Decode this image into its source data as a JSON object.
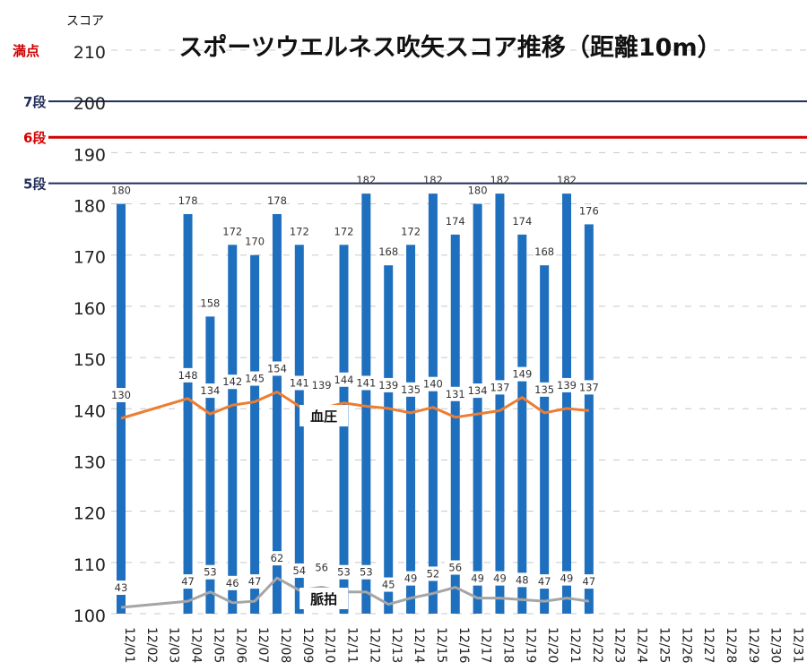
{
  "chart_data": {
    "type": "bar",
    "title": "スポーツウエルネス吹矢スコア推移（距離10m）",
    "ylabel": "スコア",
    "ylim": [
      100,
      210
    ],
    "yticks": [
      100,
      110,
      120,
      130,
      140,
      150,
      160,
      170,
      180,
      190,
      200,
      210
    ],
    "categories": [
      "12/01",
      "12/02",
      "12/03",
      "12/04",
      "12/05",
      "12/06",
      "12/07",
      "12/08",
      "12/09",
      "12/10",
      "12/11",
      "12/12",
      "12/13",
      "12/14",
      "12/15",
      "12/16",
      "12/17",
      "12/18",
      "12/19",
      "12/20",
      "12/21",
      "12/22",
      "12/23",
      "12/24",
      "12/25",
      "12/26",
      "12/27",
      "12/28",
      "12/29",
      "12/30",
      "12/31"
    ],
    "values": [
      180,
      null,
      null,
      178,
      158,
      172,
      170,
      178,
      172,
      null,
      172,
      182,
      168,
      172,
      182,
      174,
      180,
      182,
      174,
      168,
      182,
      176,
      null,
      null,
      null,
      null,
      null,
      null,
      null,
      null,
      null
    ],
    "lines": [
      {
        "name": "血圧",
        "color": "#ed7d31",
        "values": [
          130,
          null,
          null,
          148,
          134,
          142,
          145,
          154,
          141,
          139,
          144,
          141,
          139,
          135,
          140,
          131,
          134,
          137,
          149,
          135,
          139,
          137,
          null,
          null,
          null,
          null,
          null,
          null,
          null,
          null,
          null
        ]
      },
      {
        "name": "脈拍",
        "color": "#a5a5a5",
        "values": [
          43,
          null,
          null,
          47,
          53,
          46,
          47,
          62,
          54,
          56,
          53,
          53,
          45,
          49,
          52,
          56,
          49,
          49,
          48,
          47,
          49,
          47,
          null,
          null,
          null,
          null,
          null,
          null,
          null,
          null,
          null
        ]
      }
    ],
    "reference_lines": [
      {
        "label": "満点",
        "value": 210,
        "color": "#cc0000"
      },
      {
        "label": "7段",
        "value": 200,
        "color": "#1f2d5a"
      },
      {
        "label": "6段",
        "value": 193,
        "color": "#d40000"
      },
      {
        "label": "5段",
        "value": 184,
        "color": "#1f2d5a"
      }
    ],
    "colors": {
      "bar": "#1f6fbf",
      "grid": "#c8c8c8",
      "text": "#333333"
    },
    "grid": true
  }
}
